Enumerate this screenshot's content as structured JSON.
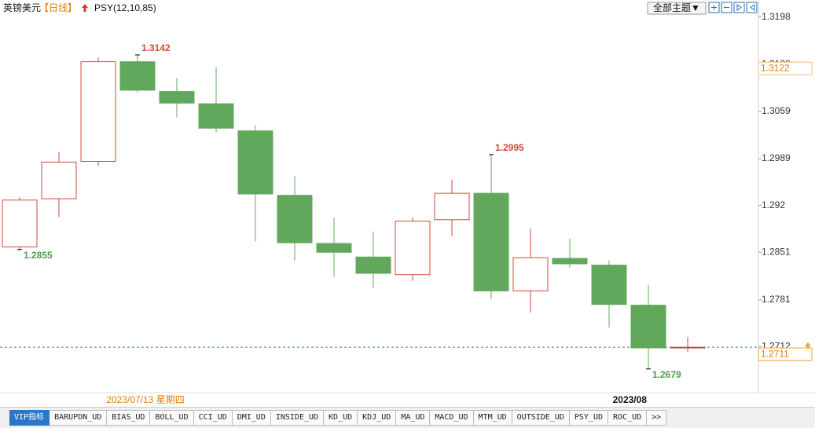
{
  "header": {
    "symbol": "英镑美元",
    "period": "【日线】",
    "indicator": "PSY(12,10,85)",
    "theme_button": "全部主题▼"
  },
  "chart_data": {
    "type": "candlestick",
    "categories": [
      null,
      null,
      null,
      "2023/07/13 星期四",
      null,
      null,
      null,
      null,
      null,
      null,
      null,
      null,
      null,
      null,
      null,
      null,
      "2023/08",
      null
    ],
    "open": [
      1.2859,
      1.293,
      1.2985,
      1.3132,
      1.3088,
      1.307,
      1.303,
      1.2935,
      1.2864,
      1.2844,
      1.2818,
      1.2899,
      1.2938,
      1.2794,
      1.2842,
      1.2832,
      1.2773,
      1.2711
    ],
    "high": [
      1.2932,
      1.2999,
      1.3138,
      1.3142,
      1.3108,
      1.3124,
      1.3038,
      1.2963,
      1.2902,
      1.2882,
      1.2902,
      1.2958,
      1.2995,
      1.2886,
      1.2871,
      1.2839,
      1.2803,
      1.2726
    ],
    "low": [
      1.2855,
      1.2903,
      1.2979,
      1.3087,
      1.305,
      1.3028,
      1.2867,
      1.2839,
      1.2815,
      1.2798,
      1.2809,
      1.2875,
      1.2782,
      1.2762,
      1.2828,
      1.274,
      1.2679,
      1.2704
    ],
    "close": [
      1.2928,
      1.2984,
      1.3132,
      1.309,
      1.3071,
      1.3034,
      1.2937,
      1.2865,
      1.2851,
      1.282,
      1.2897,
      1.2938,
      1.2794,
      1.2843,
      1.2834,
      1.2774,
      1.271,
      1.2711
    ],
    "up_color": "#cf4a3f",
    "down_color": "#62a85c",
    "ylim": [
      1.2644,
      1.3223
    ],
    "yticks": [
      1.2712,
      1.2781,
      1.2851,
      1.292,
      1.2989,
      1.3059,
      1.3128,
      1.3198
    ],
    "marker_price": 1.3122,
    "grid": false
  },
  "tabs": [
    "VIP指标",
    "BARUPDN_UD",
    "BIAS_UD",
    "BOLL_UD",
    "CCI_UD",
    "DMI_UD",
    "INSIDE_UD",
    "KD_UD",
    "KDJ_UD",
    "MA_UD",
    "MACD_UD",
    "MTM_UD",
    "OUTSIDE_UD",
    "PSY_UD",
    "ROC_UD",
    ">>"
  ]
}
